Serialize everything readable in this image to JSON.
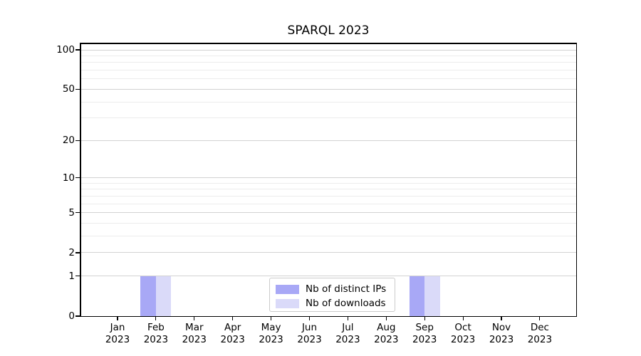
{
  "chart_data": {
    "type": "bar",
    "title": "SPARQL 2023",
    "categories": [
      "Jan",
      "Feb",
      "Mar",
      "Apr",
      "May",
      "Jun",
      "Jul",
      "Aug",
      "Sep",
      "Oct",
      "Nov",
      "Dec"
    ],
    "x_tick_year": "2023",
    "series": [
      {
        "name": "Nb of distinct IPs",
        "color": "#a8a8f6",
        "values": [
          0,
          1,
          0,
          0,
          0,
          0,
          0,
          0,
          1,
          0,
          0,
          0
        ]
      },
      {
        "name": "Nb of downloads",
        "color": "#dadaf9",
        "values": [
          0,
          1,
          0,
          0,
          0,
          0,
          0,
          0,
          1,
          0,
          0,
          0
        ]
      }
    ],
    "y_axis": {
      "scale": "log1p",
      "ticks": [
        0,
        1,
        2,
        5,
        10,
        20,
        50,
        100
      ],
      "tick_labels": [
        "0",
        "1",
        "2",
        "5",
        "10",
        "20",
        "50",
        "100"
      ],
      "minor_gridlines": [
        3,
        4,
        6,
        7,
        8,
        9,
        30,
        40,
        60,
        70,
        80,
        90
      ],
      "lim": [
        0,
        100
      ]
    },
    "legend": {
      "position": "lower center"
    },
    "grid": "horizontal",
    "colors": {
      "major_grid": "#d2d2d2",
      "minor_grid": "#ececec",
      "spine": "#000000",
      "text": "#000000"
    }
  }
}
